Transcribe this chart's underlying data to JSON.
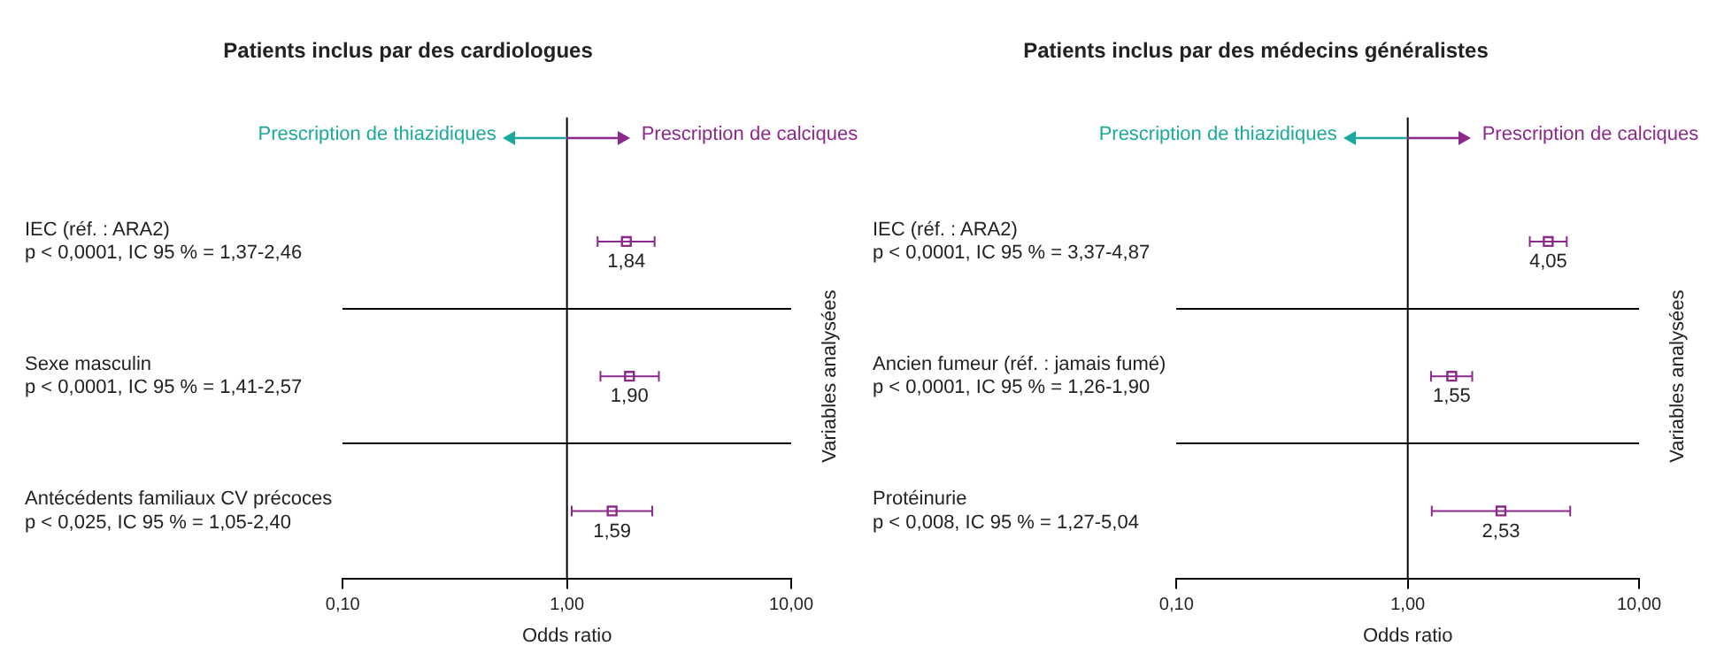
{
  "chart_data": [
    {
      "type": "scatter",
      "orientation": "horizontal",
      "title": "Patients inclus par des cardiologues",
      "xlabel": "Odds ratio",
      "ylabel": "Variables analysées",
      "categories": [
        "IEC (réf. : ARA2)",
        "Sexe masculin",
        "Antécédents familiaux CV précoces"
      ],
      "values": [
        1.84,
        1.9,
        1.59
      ],
      "errors": [
        [
          1.37,
          2.46
        ],
        [
          1.41,
          2.57
        ],
        [
          1.05,
          2.4
        ]
      ],
      "value_labels": [
        "1,84",
        "1,90",
        "1,59"
      ],
      "color": "#8b2a8c",
      "marker": "square",
      "annotations": [
        "Prescription de thiazidiques",
        "Prescription de calciques",
        "p < 0,0001, IC 95 % = 1,37-2,46",
        "p < 0,0001, IC 95 % = 1,41-2,57",
        "p < 0,025, IC 95 % = 1,05-2,40"
      ],
      "log": "x",
      "xlim": [
        0.1,
        10
      ],
      "xticks": [
        {
          "value": 0.1,
          "label": "0,10"
        },
        {
          "value": 1,
          "label": "1,00"
        },
        {
          "value": 10,
          "label": "10,00"
        }
      ],
      "grid": "y",
      "ref_lines": [
        {
          "axis": "x",
          "value": 1
        }
      ]
    },
    {
      "type": "scatter",
      "orientation": "horizontal",
      "title": "Patients inclus par des médecins généralistes",
      "xlabel": "Odds ratio",
      "ylabel": "Variables analysées",
      "categories": [
        "IEC (réf. : ARA2)",
        "Ancien fumeur (réf. : jamais fumé)",
        "Protéinurie"
      ],
      "values": [
        4.05,
        1.55,
        2.53
      ],
      "errors": [
        [
          3.37,
          4.87
        ],
        [
          1.26,
          1.9
        ],
        [
          1.27,
          5.04
        ]
      ],
      "value_labels": [
        "4,05",
        "1,55",
        "2,53"
      ],
      "color": "#8b2a8c",
      "marker": "square",
      "annotations": [
        "Prescription de thiazidiques",
        "Prescription de calciques",
        "p < 0,0001, IC 95 % = 3,37-4,87",
        "p < 0,0001, IC 95 % = 1,26-1,90",
        "p < 0,008, IC 95 % = 1,27-5,04"
      ],
      "log": "x",
      "xlim": [
        0.1,
        10
      ],
      "xticks": [
        {
          "value": 0.1,
          "label": "0,10"
        },
        {
          "value": 1,
          "label": "1,00"
        },
        {
          "value": 10,
          "label": "10,00"
        }
      ],
      "grid": "y",
      "ref_lines": [
        {
          "axis": "x",
          "value": 1
        }
      ]
    }
  ]
}
